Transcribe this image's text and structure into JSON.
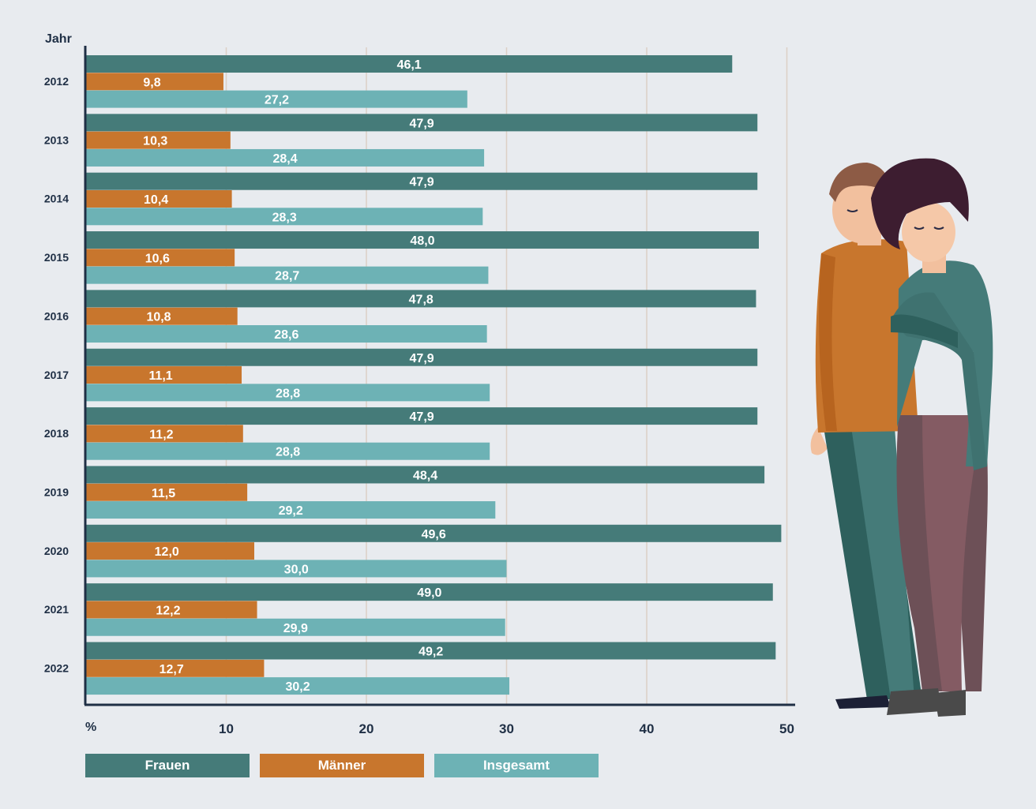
{
  "chart_data": {
    "type": "bar",
    "orientation": "horizontal",
    "y_axis_title": "Jahr",
    "x_axis_unit": "%",
    "categories": [
      "2012",
      "2013",
      "2014",
      "2015",
      "2016",
      "2017",
      "2018",
      "2019",
      "2020",
      "2021",
      "2022"
    ],
    "series": [
      {
        "name": "Frauen",
        "color": "#457b79",
        "values": [
          46.1,
          47.9,
          47.9,
          48.0,
          47.8,
          47.9,
          47.9,
          48.4,
          49.6,
          49.0,
          49.2
        ],
        "labels": [
          "46,1",
          "47,9",
          "47,9",
          "48,0",
          "47,8",
          "47,9",
          "47,9",
          "48,4",
          "49,6",
          "49,0",
          "49,2"
        ]
      },
      {
        "name": "Männer",
        "color": "#c8762d",
        "values": [
          9.8,
          10.3,
          10.4,
          10.6,
          10.8,
          11.1,
          11.2,
          11.5,
          12.0,
          12.2,
          12.7
        ],
        "labels": [
          "9,8",
          "10,3",
          "10,4",
          "10,6",
          "10,8",
          "11,1",
          "11,2",
          "11,5",
          "12,0",
          "12,2",
          "12,7"
        ]
      },
      {
        "name": "Insgesamt",
        "color": "#6db2b5",
        "values": [
          27.2,
          28.4,
          28.3,
          28.7,
          28.6,
          28.8,
          28.8,
          29.2,
          30.0,
          29.9,
          30.2
        ],
        "labels": [
          "27,2",
          "28,4",
          "28,3",
          "28,7",
          "28,6",
          "28,8",
          "28,8",
          "29,2",
          "30,0",
          "29,9",
          "30,2"
        ]
      }
    ],
    "x_ticks": [
      10,
      20,
      30,
      40,
      50
    ],
    "xlim": [
      0,
      50
    ],
    "grid": true,
    "legend_position": "bottom-left"
  },
  "colors": {
    "background": "#e8ebef",
    "axis": "#1f2f45",
    "grid": "#dccfc6"
  },
  "illustration": "couple-illustration"
}
